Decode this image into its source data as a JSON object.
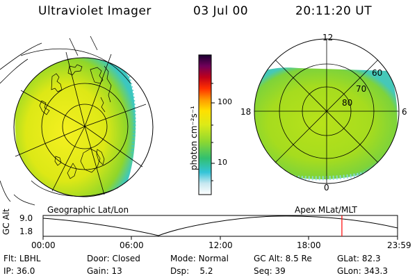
{
  "header": {
    "title": "Ultraviolet Imager",
    "date": "03 Jul 00",
    "time": "20:11:20 UT"
  },
  "colorbar": {
    "unit_label": "photon cm⁻²s⁻¹",
    "ticks": [
      "100",
      "10"
    ]
  },
  "left_panel": {
    "projection_label": "Geographic Lat/Lon"
  },
  "right_panel": {
    "projection_label": "Apex MLat/MLT",
    "mlt_labels": {
      "top": "12",
      "left": "18",
      "right": "6",
      "bottom": "0"
    },
    "lat_labels": [
      "60",
      "70",
      "80"
    ]
  },
  "timeline": {
    "axis_label": "GC Alt",
    "y_ticks": [
      "9.0",
      "1.8"
    ],
    "x_ticks": [
      "00:00",
      "06:00",
      "12:00",
      "18:00",
      "23:59"
    ],
    "current_time_fraction": 0.843
  },
  "info": {
    "row1": [
      {
        "label": "Flt:",
        "value": "LBHL"
      },
      {
        "label": "Door:",
        "value": "Closed"
      },
      {
        "label": "Mode:",
        "value": "Normal"
      },
      {
        "label": "GC Alt:",
        "value": "8.5 Re"
      },
      {
        "label": "GLat:",
        "value": "82.3"
      }
    ],
    "row2": [
      {
        "label": "IP:",
        "value": "36.0"
      },
      {
        "label": "Gain:",
        "value": "13"
      },
      {
        "label": "Dsp:",
        "value": "5.2"
      },
      {
        "label": "Seq:",
        "value": "39"
      },
      {
        "label": "GLon:",
        "value": "343.3"
      }
    ]
  },
  "colors": {
    "background": "#ffffff",
    "marker": "#ff0000"
  }
}
